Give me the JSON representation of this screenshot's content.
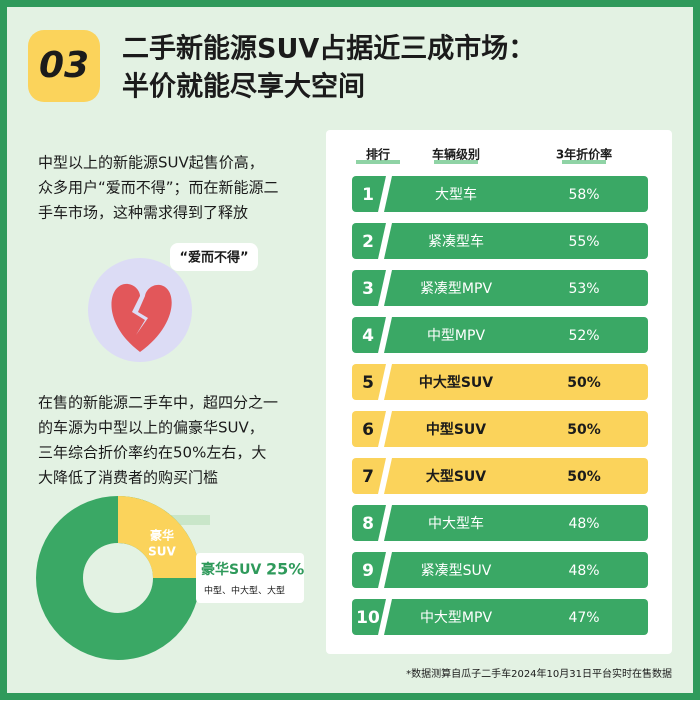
{
  "header": {
    "badge": "03",
    "title_lines": [
      "二手新能源SUV占据近三成市场：",
      "半价就能尽享大空间"
    ]
  },
  "intro": {
    "lines": [
      "中型以上的新能源SUV起售价高，",
      "众多用户“爱而不得”；而在新能源二",
      "手车市场，这种需求得到了释放"
    ]
  },
  "bubble": "“爱而不得”",
  "detail": {
    "lines": [
      "在售的新能源二手车中，超四分之一",
      "的车源为中型以上的偏豪华SUV，",
      "三年综合折价率约在50%左右，大",
      "大降低了消费者的购买门槛"
    ]
  },
  "donut": {
    "segment_lines": [
      "豪华",
      "SUV"
    ],
    "label": "豪华SUV",
    "value": 25,
    "value_label": "25%",
    "note": "中型、中大型、大型"
  },
  "table": {
    "columns": [
      "排行",
      "车辆级别",
      "3年折价率"
    ],
    "rows": [
      [
        "1",
        "大型车",
        "58%"
      ],
      [
        "2",
        "紧凑型车",
        "55%"
      ],
      [
        "3",
        "紧凑型MPV",
        "53%"
      ],
      [
        "4",
        "中型MPV",
        "52%"
      ],
      [
        "5",
        "中大型SUV",
        "50%"
      ],
      [
        "6",
        "中型SUV",
        "50%"
      ],
      [
        "7",
        "大型SUV",
        "50%"
      ],
      [
        "8",
        "中大型车",
        "48%"
      ],
      [
        "9",
        "紧凑型SUV",
        "48%"
      ],
      [
        "10",
        "中大型MPV",
        "47%"
      ]
    ],
    "highlight_rows": [
      4,
      5,
      6
    ]
  },
  "footnote": "*数据测算自瓜子二手车2024年10月31日平台实时在售数据"
}
